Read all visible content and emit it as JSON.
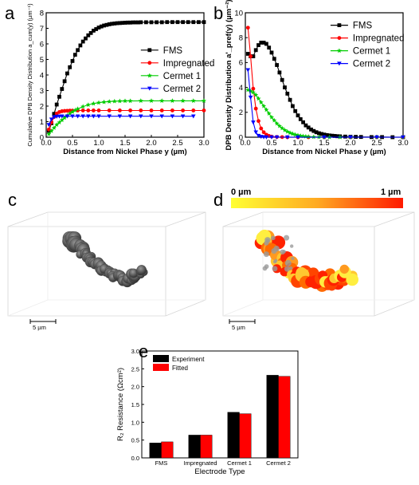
{
  "panels": {
    "a": "a",
    "b": "b",
    "c": "c",
    "d": "d",
    "e": "e"
  },
  "colors": {
    "FMS": "#000000",
    "Impregnated": "#ff0000",
    "Cermet 1": "#00cc00",
    "Cermet 2": "#0000ff",
    "experiment": "#000000",
    "fitted": "#ff0000",
    "ctb_low": "#ffff33",
    "ctb_high": "#ff0000"
  },
  "scale_bar_c": "5 µm",
  "scale_bar_d": "5 µm",
  "colorbar": {
    "min_label": "0 µm",
    "max_label": "1 µm"
  },
  "icons": [
    "particle-3d-gray",
    "particle-3d-heatmap"
  ],
  "chart_data": [
    {
      "panel": "a",
      "type": "line",
      "xlabel": "Distance from Nickel Phase y (µm)",
      "ylabel": "Cumulative DPB Density Distribution a_cum(y) (µm⁻¹)",
      "xlim": [
        0,
        3
      ],
      "ylim": [
        0,
        8
      ],
      "xticks": [
        "0.0",
        "0.5",
        "1.0",
        "1.5",
        "2.0",
        "2.5",
        "3.0"
      ],
      "yticks": [
        "0",
        "1",
        "2",
        "3",
        "4",
        "5",
        "6",
        "7",
        "8"
      ],
      "legend": "right",
      "series": [
        {
          "name": "FMS",
          "marker": "square",
          "x": [
            0.05,
            0.1,
            0.15,
            0.2,
            0.25,
            0.3,
            0.35,
            0.4,
            0.45,
            0.5,
            0.55,
            0.6,
            0.65,
            0.7,
            0.75,
            0.8,
            0.85,
            0.9,
            0.95,
            1.0,
            1.05,
            1.1,
            1.15,
            1.2,
            1.25,
            1.3,
            1.35,
            1.4,
            1.45,
            1.5,
            1.55,
            1.6,
            1.65,
            1.7,
            1.75,
            1.8,
            1.9,
            2.0,
            2.1,
            2.2,
            2.3,
            2.4,
            2.5,
            2.6,
            2.7,
            2.8,
            2.9,
            3.0
          ],
          "y": [
            0.4,
            0.9,
            1.5,
            2.1,
            2.6,
            3.1,
            3.6,
            4.1,
            4.5,
            4.9,
            5.3,
            5.6,
            5.9,
            6.15,
            6.35,
            6.55,
            6.7,
            6.85,
            6.95,
            7.05,
            7.12,
            7.18,
            7.22,
            7.26,
            7.29,
            7.31,
            7.33,
            7.34,
            7.35,
            7.36,
            7.37,
            7.37,
            7.38,
            7.38,
            7.38,
            7.39,
            7.39,
            7.39,
            7.39,
            7.39,
            7.4,
            7.4,
            7.4,
            7.4,
            7.4,
            7.4,
            7.4,
            7.4
          ]
        },
        {
          "name": "Impregnated",
          "marker": "circle",
          "x": [
            0.05,
            0.1,
            0.15,
            0.2,
            0.25,
            0.3,
            0.35,
            0.4,
            0.45,
            0.5,
            0.6,
            0.7,
            0.8,
            0.9,
            1.0,
            1.2,
            1.4,
            1.6,
            1.8,
            2.0,
            2.2,
            2.4,
            2.6,
            2.8,
            3.0
          ],
          "y": [
            0.5,
            0.95,
            1.3,
            1.52,
            1.62,
            1.67,
            1.69,
            1.7,
            1.71,
            1.71,
            1.72,
            1.72,
            1.72,
            1.72,
            1.72,
            1.72,
            1.72,
            1.72,
            1.72,
            1.72,
            1.72,
            1.72,
            1.72,
            1.72,
            1.72
          ]
        },
        {
          "name": "Cermet 1",
          "marker": "star",
          "x": [
            0.05,
            0.1,
            0.15,
            0.2,
            0.25,
            0.3,
            0.35,
            0.4,
            0.45,
            0.5,
            0.55,
            0.6,
            0.7,
            0.8,
            0.9,
            1.0,
            1.1,
            1.2,
            1.3,
            1.4,
            1.5,
            1.6,
            1.8,
            2.0,
            2.2,
            2.4,
            2.6,
            2.8,
            3.0
          ],
          "y": [
            0.2,
            0.4,
            0.6,
            0.8,
            0.95,
            1.1,
            1.25,
            1.4,
            1.52,
            1.63,
            1.73,
            1.82,
            1.97,
            2.08,
            2.16,
            2.22,
            2.26,
            2.29,
            2.31,
            2.32,
            2.33,
            2.33,
            2.34,
            2.34,
            2.34,
            2.34,
            2.34,
            2.34,
            2.34
          ]
        },
        {
          "name": "Cermet 2",
          "marker": "triangle-down",
          "x": [
            0.05,
            0.1,
            0.15,
            0.2,
            0.25,
            0.3,
            0.4,
            0.5,
            0.6,
            0.7,
            0.8,
            0.9,
            1.0,
            1.2,
            1.4,
            1.6,
            1.8,
            2.0,
            2.2,
            2.4,
            2.6,
            2.8
          ],
          "y": [
            0.8,
            1.15,
            1.3,
            1.33,
            1.34,
            1.35,
            1.35,
            1.35,
            1.35,
            1.35,
            1.35,
            1.35,
            1.35,
            1.35,
            1.35,
            1.35,
            1.35,
            1.35,
            1.35,
            1.35,
            1.35,
            1.35
          ]
        }
      ]
    },
    {
      "panel": "b",
      "type": "line",
      "xlabel": "Distance from Nickel Phase y (µm)",
      "ylabel": "DPB Density Distribution a'_pref(y) (µm⁻²)",
      "xlim": [
        0,
        3
      ],
      "ylim": [
        0,
        10
      ],
      "xticks": [
        "0.0",
        "0.5",
        "1.0",
        "1.5",
        "2.0",
        "2.5",
        "3.0"
      ],
      "yticks": [
        "0",
        "2",
        "4",
        "6",
        "8",
        "10"
      ],
      "legend": "top-right",
      "series": [
        {
          "name": "FMS",
          "marker": "square",
          "x": [
            0.05,
            0.1,
            0.15,
            0.2,
            0.25,
            0.3,
            0.35,
            0.4,
            0.45,
            0.5,
            0.55,
            0.6,
            0.65,
            0.7,
            0.75,
            0.8,
            0.85,
            0.9,
            0.95,
            1.0,
            1.05,
            1.1,
            1.15,
            1.2,
            1.25,
            1.3,
            1.35,
            1.4,
            1.45,
            1.5,
            1.55,
            1.6,
            1.65,
            1.7,
            1.75,
            1.8,
            1.9,
            2.0,
            2.1,
            2.2,
            2.4,
            2.6,
            2.8,
            3.0
          ],
          "y": [
            6.7,
            6.5,
            6.5,
            7.0,
            7.4,
            7.6,
            7.6,
            7.5,
            7.2,
            6.8,
            6.3,
            5.8,
            5.2,
            4.6,
            4.0,
            3.5,
            3.0,
            2.5,
            2.1,
            1.75,
            1.45,
            1.2,
            0.95,
            0.78,
            0.62,
            0.5,
            0.4,
            0.32,
            0.26,
            0.21,
            0.17,
            0.14,
            0.12,
            0.1,
            0.08,
            0.07,
            0.05,
            0.04,
            0.03,
            0.02,
            0.01,
            0.01,
            0.0,
            0.0
          ]
        },
        {
          "name": "Impregnated",
          "marker": "circle",
          "x": [
            0.05,
            0.1,
            0.15,
            0.2,
            0.25,
            0.3,
            0.35,
            0.4,
            0.45,
            0.5,
            0.6,
            0.7,
            0.8,
            1.0,
            1.2,
            1.5,
            2.0,
            2.5,
            3.0
          ],
          "y": [
            8.8,
            6.5,
            3.9,
            2.3,
            1.3,
            0.7,
            0.4,
            0.2,
            0.1,
            0.05,
            0.02,
            0.01,
            0.0,
            0.0,
            0.0,
            0.0,
            0.0,
            0.0,
            0.0
          ]
        },
        {
          "name": "Cermet 1",
          "marker": "star",
          "x": [
            0.05,
            0.1,
            0.15,
            0.2,
            0.25,
            0.3,
            0.35,
            0.4,
            0.45,
            0.5,
            0.55,
            0.6,
            0.65,
            0.7,
            0.75,
            0.8,
            0.85,
            0.9,
            0.95,
            1.0,
            1.05,
            1.1,
            1.15,
            1.2,
            1.3,
            1.4,
            1.5,
            1.6,
            1.8,
            2.0,
            2.5,
            3.0
          ],
          "y": [
            3.8,
            3.7,
            3.6,
            3.4,
            3.1,
            2.8,
            2.5,
            2.2,
            1.9,
            1.6,
            1.35,
            1.1,
            0.9,
            0.72,
            0.57,
            0.45,
            0.35,
            0.27,
            0.2,
            0.15,
            0.11,
            0.08,
            0.06,
            0.04,
            0.02,
            0.01,
            0.0,
            0.0,
            0.0,
            0.0,
            0.0,
            0.0
          ]
        },
        {
          "name": "Cermet 2",
          "marker": "triangle-down",
          "x": [
            0.05,
            0.1,
            0.15,
            0.2,
            0.25,
            0.3,
            0.35,
            0.4,
            0.5,
            0.6,
            0.8,
            1.0,
            1.5,
            2.0,
            2.5,
            3.0
          ],
          "y": [
            5.4,
            3.2,
            1.2,
            0.4,
            0.12,
            0.04,
            0.01,
            0.0,
            0.0,
            0.0,
            0.0,
            0.0,
            0.0,
            0.0,
            0.0,
            0.0
          ]
        }
      ]
    },
    {
      "panel": "e",
      "type": "bar",
      "xlabel": "Electrode Type",
      "ylabel": "R₂ Resistance (Ωcm²)",
      "ylim": [
        0,
        3.0
      ],
      "yticks": [
        "0.0",
        "0.5",
        "1.0",
        "1.5",
        "2.0",
        "2.5",
        "3.0"
      ],
      "categories": [
        "FMS",
        "Impregnated",
        "Cermet 1",
        "Cermet 2"
      ],
      "legend": "top-left",
      "series": [
        {
          "name": "Experiment",
          "values": [
            0.42,
            0.64,
            1.28,
            2.32
          ]
        },
        {
          "name": "Fitted",
          "values": [
            0.45,
            0.64,
            1.24,
            2.29
          ]
        }
      ]
    }
  ]
}
